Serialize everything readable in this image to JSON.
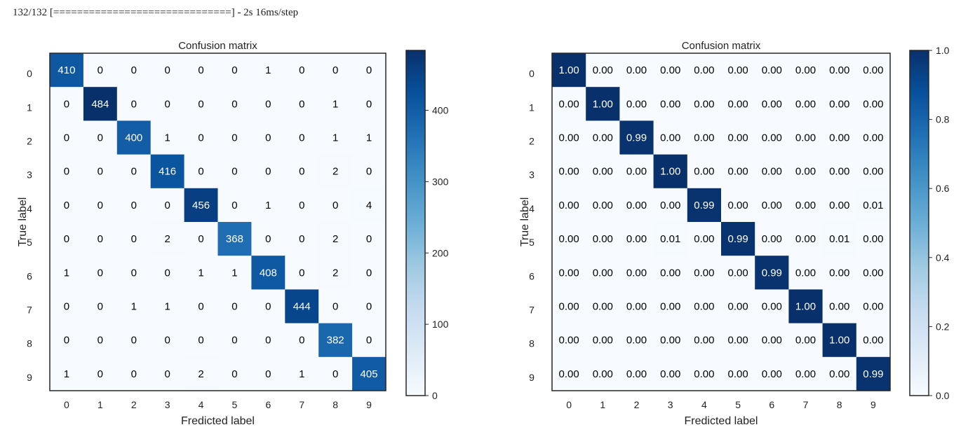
{
  "log": {
    "progress_line": "132/132 [==============================] - 2s 16ms/step"
  },
  "colors": {
    "cmap_low": "#f7fbff",
    "cmap_high": "#08306b",
    "text_dark": "#000000",
    "text_light": "#ffffff"
  },
  "chart_data": [
    {
      "type": "heatmap",
      "title": "Confusion matrix",
      "xlabel": "Fredicted label",
      "ylabel": "True label",
      "x_categories": [
        "0",
        "1",
        "2",
        "3",
        "4",
        "5",
        "6",
        "7",
        "8",
        "9"
      ],
      "y_categories": [
        "0",
        "1",
        "2",
        "3",
        "4",
        "5",
        "6",
        "7",
        "8",
        "9"
      ],
      "value_format": "int",
      "vmin": 0,
      "vmax": 484,
      "colorbar_ticks": [
        0,
        100,
        200,
        300,
        400
      ],
      "colorbar_tick_labels": [
        "0",
        "100",
        "200",
        "300",
        "400"
      ],
      "values": [
        [
          410,
          0,
          0,
          0,
          0,
          0,
          1,
          0,
          0,
          0
        ],
        [
          0,
          484,
          0,
          0,
          0,
          0,
          0,
          0,
          1,
          0
        ],
        [
          0,
          0,
          400,
          1,
          0,
          0,
          0,
          0,
          1,
          1
        ],
        [
          0,
          0,
          0,
          416,
          0,
          0,
          0,
          0,
          2,
          0
        ],
        [
          0,
          0,
          0,
          0,
          456,
          0,
          1,
          0,
          0,
          4
        ],
        [
          0,
          0,
          0,
          2,
          0,
          368,
          0,
          0,
          2,
          0
        ],
        [
          1,
          0,
          0,
          0,
          1,
          1,
          408,
          0,
          2,
          0
        ],
        [
          0,
          0,
          1,
          1,
          0,
          0,
          0,
          444,
          0,
          0
        ],
        [
          0,
          0,
          0,
          0,
          0,
          0,
          0,
          0,
          382,
          0
        ],
        [
          1,
          0,
          0,
          0,
          2,
          0,
          0,
          1,
          0,
          405
        ]
      ]
    },
    {
      "type": "heatmap",
      "title": "Confusion matrix",
      "xlabel": "Fredicted label",
      "ylabel": "True label",
      "x_categories": [
        "0",
        "1",
        "2",
        "3",
        "4",
        "5",
        "6",
        "7",
        "8",
        "9"
      ],
      "y_categories": [
        "0",
        "1",
        "2",
        "3",
        "4",
        "5",
        "6",
        "7",
        "8",
        "9"
      ],
      "value_format": "2f",
      "vmin": 0.0,
      "vmax": 1.0,
      "colorbar_ticks": [
        0.0,
        0.2,
        0.4,
        0.6,
        0.8,
        1.0
      ],
      "colorbar_tick_labels": [
        "0.0",
        "0.2",
        "0.4",
        "0.6",
        "0.8",
        "1.0"
      ],
      "values": [
        [
          1.0,
          0.0,
          0.0,
          0.0,
          0.0,
          0.0,
          0.0,
          0.0,
          0.0,
          0.0
        ],
        [
          0.0,
          1.0,
          0.0,
          0.0,
          0.0,
          0.0,
          0.0,
          0.0,
          0.0,
          0.0
        ],
        [
          0.0,
          0.0,
          0.99,
          0.0,
          0.0,
          0.0,
          0.0,
          0.0,
          0.0,
          0.0
        ],
        [
          0.0,
          0.0,
          0.0,
          1.0,
          0.0,
          0.0,
          0.0,
          0.0,
          0.0,
          0.0
        ],
        [
          0.0,
          0.0,
          0.0,
          0.0,
          0.99,
          0.0,
          0.0,
          0.0,
          0.0,
          0.01
        ],
        [
          0.0,
          0.0,
          0.0,
          0.01,
          0.0,
          0.99,
          0.0,
          0.0,
          0.01,
          0.0
        ],
        [
          0.0,
          0.0,
          0.0,
          0.0,
          0.0,
          0.0,
          0.99,
          0.0,
          0.0,
          0.0
        ],
        [
          0.0,
          0.0,
          0.0,
          0.0,
          0.0,
          0.0,
          0.0,
          1.0,
          0.0,
          0.0
        ],
        [
          0.0,
          0.0,
          0.0,
          0.0,
          0.0,
          0.0,
          0.0,
          0.0,
          1.0,
          0.0
        ],
        [
          0.0,
          0.0,
          0.0,
          0.0,
          0.0,
          0.0,
          0.0,
          0.0,
          0.0,
          0.99
        ]
      ]
    }
  ]
}
